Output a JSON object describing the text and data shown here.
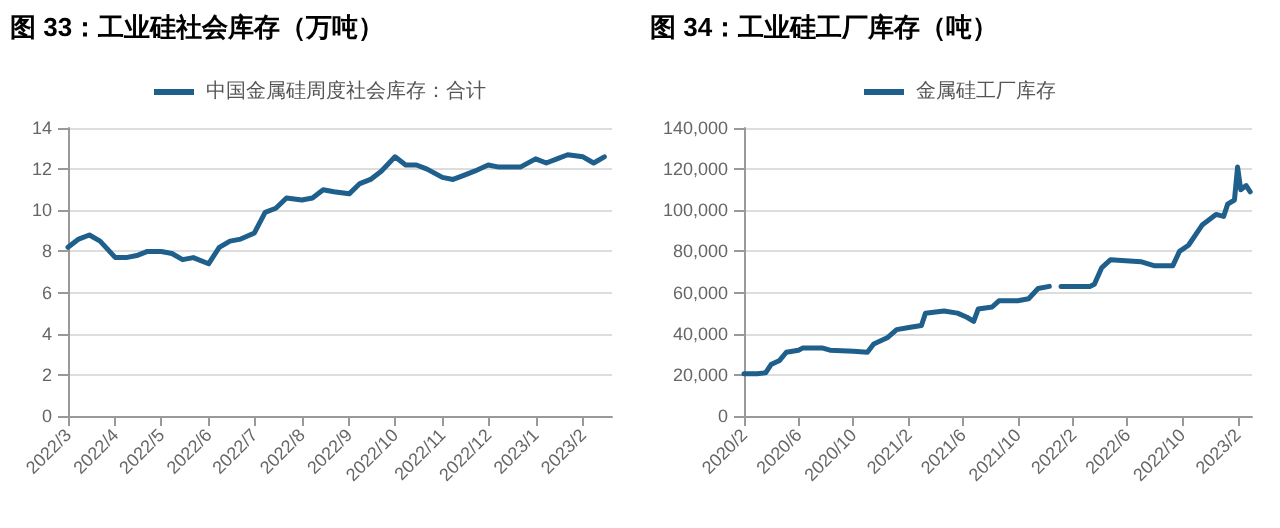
{
  "chart_data": [
    {
      "type": "line",
      "title": "图 33：工业硅社会库存（万吨）",
      "legend": "top",
      "grid": "y",
      "x": [
        "2022-03-01",
        "2022-03-08",
        "2022-03-15",
        "2022-03-22",
        "2022-04-01",
        "2022-04-08",
        "2022-04-15",
        "2022-04-22",
        "2022-05-01",
        "2022-05-08",
        "2022-05-15",
        "2022-05-22",
        "2022-06-01",
        "2022-06-08",
        "2022-06-15",
        "2022-06-22",
        "2022-07-01",
        "2022-07-08",
        "2022-07-15",
        "2022-07-22",
        "2022-08-01",
        "2022-08-08",
        "2022-08-15",
        "2022-08-22",
        "2022-09-01",
        "2022-09-08",
        "2022-09-15",
        "2022-09-22",
        "2022-10-01",
        "2022-10-08",
        "2022-10-15",
        "2022-10-22",
        "2022-11-01",
        "2022-11-08",
        "2022-11-15",
        "2022-11-22",
        "2022-12-01",
        "2022-12-08",
        "2022-12-15",
        "2022-12-22",
        "2023-01-01",
        "2023-01-08",
        "2023-01-15",
        "2023-01-22",
        "2023-02-01",
        "2023-02-08",
        "2023-02-15"
      ],
      "series": [
        {
          "name": "中国金属硅周度社会库存：合计",
          "color": "#1f5f8b",
          "values": [
            8.2,
            8.6,
            8.8,
            8.5,
            7.7,
            7.7,
            7.8,
            8.0,
            8.0,
            7.9,
            7.6,
            7.7,
            7.4,
            8.2,
            8.5,
            8.6,
            8.9,
            9.9,
            10.1,
            10.6,
            10.5,
            10.6,
            11.0,
            10.9,
            10.8,
            11.3,
            11.5,
            11.9,
            12.6,
            12.2,
            12.2,
            12.0,
            11.6,
            11.5,
            11.7,
            11.9,
            12.2,
            12.1,
            12.1,
            12.1,
            12.5,
            12.3,
            12.5,
            12.7,
            12.6,
            12.3,
            12.6
          ]
        }
      ],
      "xlim": [
        "2022-03-01",
        "2023-02-20"
      ],
      "xticks": [
        {
          "value": "2022-03-01",
          "label": "2022/3"
        },
        {
          "value": "2022-04-01",
          "label": "2022/4"
        },
        {
          "value": "2022-05-01",
          "label": "2022/5"
        },
        {
          "value": "2022-06-01",
          "label": "2022/6"
        },
        {
          "value": "2022-07-01",
          "label": "2022/7"
        },
        {
          "value": "2022-08-01",
          "label": "2022/8"
        },
        {
          "value": "2022-09-01",
          "label": "2022/9"
        },
        {
          "value": "2022-10-01",
          "label": "2022/10"
        },
        {
          "value": "2022-11-01",
          "label": "2022/11"
        },
        {
          "value": "2022-12-01",
          "label": "2022/12"
        },
        {
          "value": "2023-01-01",
          "label": "2023/1"
        },
        {
          "value": "2023-02-01",
          "label": "2023/2"
        }
      ],
      "ylim": [
        0,
        14
      ],
      "yticks": [
        0,
        2,
        4,
        6,
        8,
        10,
        12,
        14
      ]
    },
    {
      "type": "line",
      "title": "图 34：工业硅工厂库存（吨）",
      "legend": "top",
      "grid": "y",
      "x": [
        "2020-02-01",
        "2020-03-01",
        "2020-03-20",
        "2020-04-01",
        "2020-04-20",
        "2020-05-05",
        "2020-06-01",
        "2020-06-10",
        "2020-07-25",
        "2020-08-10",
        "2020-10-01",
        "2020-11-01",
        "2020-11-15",
        "2020-12-15",
        "2021-01-05",
        "2021-02-01",
        "2021-03-01",
        "2021-03-10",
        "2021-04-20",
        "2021-05-20",
        "2021-06-10",
        "2021-06-25",
        "2021-07-05",
        "2021-08-05",
        "2021-08-20",
        "2021-10-01",
        "2021-10-25",
        "2021-11-15",
        "2021-12-10",
        "2021-12-25",
        "2022-01-05",
        "2022-03-10",
        "2022-03-20",
        "2022-04-05",
        "2022-04-25",
        "2022-07-01",
        "2022-08-01",
        "2022-09-10",
        "2022-09-25",
        "2022-10-15",
        "2022-11-15",
        "2022-12-15",
        "2023-01-01",
        "2023-01-10",
        "2023-01-25",
        "2023-02-01",
        "2023-02-08",
        "2023-02-20",
        "2023-03-01"
      ],
      "series": [
        {
          "name": "金属硅工厂库存",
          "color": "#1f5f8b",
          "values": [
            20500,
            20500,
            21000,
            25000,
            27000,
            31000,
            32000,
            33000,
            33000,
            32000,
            31500,
            31000,
            35000,
            38000,
            42000,
            43000,
            44000,
            50000,
            51000,
            50000,
            48000,
            46000,
            52000,
            53000,
            56000,
            56000,
            57000,
            62000,
            63000,
            null,
            63000,
            63000,
            64000,
            72000,
            76000,
            75000,
            73000,
            73000,
            80000,
            83000,
            93000,
            98000,
            97000,
            103000,
            105000,
            121000,
            110000,
            112000,
            109000
          ]
        }
      ],
      "xlim": [
        "2020-02-01",
        "2023-03-05"
      ],
      "xticks": [
        {
          "value": "2020-02-01",
          "label": "2020/2"
        },
        {
          "value": "2020-06-01",
          "label": "2020/6"
        },
        {
          "value": "2020-10-01",
          "label": "2020/10"
        },
        {
          "value": "2021-02-01",
          "label": "2021/2"
        },
        {
          "value": "2021-06-01",
          "label": "2021/6"
        },
        {
          "value": "2021-10-01",
          "label": "2021/10"
        },
        {
          "value": "2022-02-01",
          "label": "2022/2"
        },
        {
          "value": "2022-06-01",
          "label": "2022/6"
        },
        {
          "value": "2022-10-01",
          "label": "2022/10"
        },
        {
          "value": "2023-02-01",
          "label": "2023/2"
        }
      ],
      "ylim": [
        0,
        140000
      ],
      "yticks": [
        0,
        {
          "value": 20000,
          "label": "20,000"
        },
        {
          "value": 40000,
          "label": "40,000"
        },
        {
          "value": 60000,
          "label": "60,000"
        },
        {
          "value": 80000,
          "label": "80,000"
        },
        {
          "value": 100000,
          "label": "100,000"
        },
        {
          "value": 120000,
          "label": "120,000"
        },
        {
          "value": 140000,
          "label": "140,000"
        }
      ]
    }
  ]
}
